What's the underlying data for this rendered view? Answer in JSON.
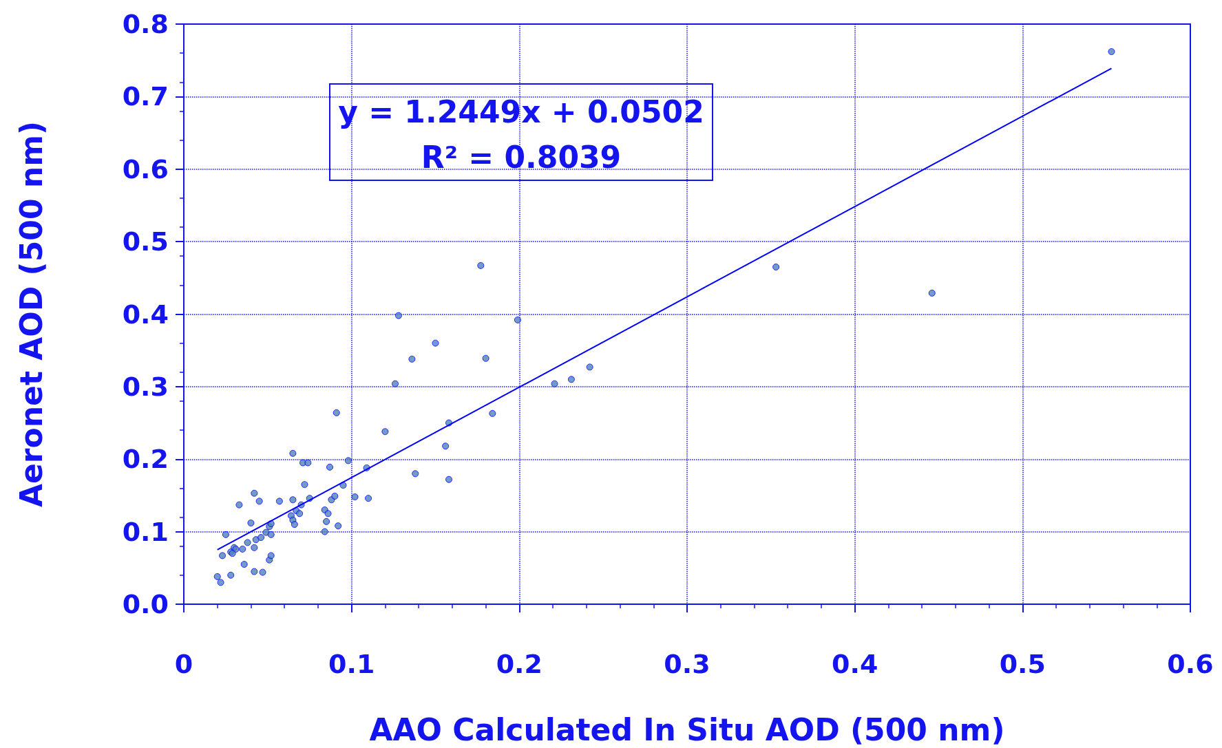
{
  "chart_data": {
    "type": "scatter",
    "xlabel": "AAO Calculated In Situ AOD (500 nm)",
    "ylabel": "Aeronet AOD (500 nm)",
    "annotations": [
      "y = 1.2449x + 0.0502",
      "R² = 0.8039"
    ],
    "xlim": [
      0,
      0.6
    ],
    "xticks": [
      0,
      0.1,
      0.2,
      0.3,
      0.4,
      0.5,
      0.6
    ],
    "ylim": [
      0,
      0.8
    ],
    "yticks": [
      {
        "value": 0,
        "label": "0.0"
      },
      0.1,
      0.2,
      0.3,
      0.4,
      0.5,
      0.6,
      0.7,
      0.8
    ],
    "grid": true,
    "series": [
      {
        "color": "#4f81bd",
        "marker": "circle",
        "x": [
          0.02,
          0.022,
          0.023,
          0.025,
          0.028,
          0.028,
          0.03,
          0.031,
          0.029,
          0.033,
          0.035,
          0.036,
          0.038,
          0.04,
          0.042,
          0.042,
          0.042,
          0.043,
          0.045,
          0.047,
          0.046,
          0.049,
          0.051,
          0.052,
          0.052,
          0.051,
          0.052,
          0.057,
          0.065,
          0.065,
          0.064,
          0.065,
          0.066,
          0.067,
          0.069,
          0.07,
          0.071,
          0.074,
          0.072,
          0.075,
          0.084,
          0.084,
          0.085,
          0.086,
          0.087,
          0.088,
          0.09,
          0.091,
          0.092,
          0.095,
          0.098,
          0.102,
          0.109,
          0.11,
          0.12,
          0.126,
          0.128,
          0.136,
          0.138,
          0.15,
          0.156,
          0.158,
          0.158,
          0.177,
          0.18,
          0.184,
          0.199,
          0.221,
          0.231,
          0.242,
          0.353,
          0.446,
          0.553
        ],
        "values": [
          0.038,
          0.03,
          0.067,
          0.096,
          0.04,
          0.072,
          0.078,
          0.076,
          0.07,
          0.137,
          0.076,
          0.055,
          0.085,
          0.112,
          0.153,
          0.045,
          0.078,
          0.089,
          0.142,
          0.044,
          0.092,
          0.099,
          0.107,
          0.096,
          0.111,
          0.061,
          0.067,
          0.142,
          0.208,
          0.144,
          0.122,
          0.116,
          0.11,
          0.129,
          0.125,
          0.137,
          0.195,
          0.195,
          0.165,
          0.146,
          0.13,
          0.1,
          0.114,
          0.125,
          0.189,
          0.144,
          0.149,
          0.264,
          0.108,
          0.164,
          0.198,
          0.148,
          0.188,
          0.146,
          0.238,
          0.304,
          0.398,
          0.338,
          0.18,
          0.36,
          0.218,
          0.25,
          0.172,
          0.467,
          0.339,
          0.263,
          0.392,
          0.304,
          0.31,
          0.327,
          0.465,
          0.429,
          0.762
        ]
      },
      {
        "type": "line",
        "color": "#0000ff",
        "x": [
          0.02,
          0.553
        ],
        "values": [
          0.075,
          0.739
        ],
        "line_style": "solid",
        "marker": "none"
      }
    ]
  }
}
